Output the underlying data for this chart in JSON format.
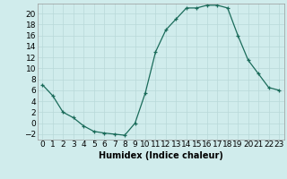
{
  "x": [
    0,
    1,
    2,
    3,
    4,
    5,
    6,
    7,
    8,
    9,
    10,
    11,
    12,
    13,
    14,
    15,
    16,
    17,
    18,
    19,
    20,
    21,
    22,
    23
  ],
  "y": [
    7,
    5,
    2,
    1,
    -0.5,
    -1.5,
    -1.8,
    -2,
    -2.2,
    0,
    5.5,
    13,
    17,
    19,
    21,
    21,
    21.5,
    21.5,
    21,
    16,
    11.5,
    9,
    6.5,
    6
  ],
  "line_color": "#1a6b5a",
  "marker": "+",
  "marker_color": "#1a6b5a",
  "bg_color": "#d0ecec",
  "grid_color": "#b8d8d8",
  "xlabel": "Humidex (Indice chaleur)",
  "xlabel_fontsize": 7,
  "xlim": [
    -0.5,
    23.5
  ],
  "ylim": [
    -3,
    21.8
  ],
  "yticks": [
    -2,
    0,
    2,
    4,
    6,
    8,
    10,
    12,
    14,
    16,
    18,
    20
  ],
  "xticks": [
    0,
    1,
    2,
    3,
    4,
    5,
    6,
    7,
    8,
    9,
    10,
    11,
    12,
    13,
    14,
    15,
    16,
    17,
    18,
    19,
    20,
    21,
    22,
    23
  ],
  "tick_fontsize": 6.5
}
